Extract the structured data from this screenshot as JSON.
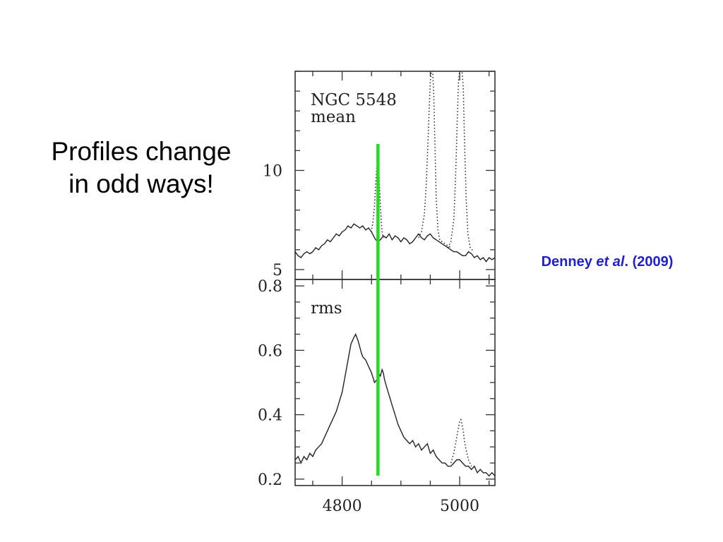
{
  "slide": {
    "caption_line1": "Profiles change",
    "caption_line2": "in odd ways!",
    "citation_author": "Denney",
    "citation_etal": "et al",
    "citation_year": ". (2009)",
    "citation_color": "#1f1fd0"
  },
  "chart_data": {
    "type": "line",
    "marker_color": "#22dd22",
    "marker_x": 4861,
    "xlabel": "",
    "xlim": [
      4720,
      5060
    ],
    "xticks": [
      4800,
      5000
    ],
    "panels": [
      {
        "name": "top",
        "label_lines": [
          "NGC 5548",
          "mean"
        ],
        "ylim": [
          4.5,
          15
        ],
        "yticks": [
          5,
          10
        ],
        "series": [
          {
            "style": "solid",
            "x": [
              4720,
              4725,
              4730,
              4735,
              4740,
              4745,
              4750,
              4755,
              4760,
              4765,
              4770,
              4775,
              4780,
              4785,
              4790,
              4795,
              4800,
              4805,
              4810,
              4815,
              4820,
              4825,
              4830,
              4835,
              4840,
              4845,
              4850,
              4855,
              4860,
              4865,
              4870,
              4875,
              4880,
              4885,
              4890,
              4895,
              4900,
              4905,
              4910,
              4915,
              4920,
              4925,
              4930,
              4935,
              4940,
              4945,
              4950,
              4955,
              4960,
              4965,
              4970,
              4975,
              4980,
              4985,
              4990,
              4995,
              5000,
              5005,
              5010,
              5015,
              5020,
              5025,
              5030,
              5035,
              5040,
              5045,
              5050,
              5055,
              5060
            ],
            "y": [
              5.9,
              5.7,
              5.6,
              5.8,
              5.9,
              5.8,
              5.9,
              6.1,
              6.0,
              6.2,
              6.3,
              6.5,
              6.4,
              6.6,
              6.8,
              6.7,
              6.9,
              7.0,
              7.2,
              7.1,
              7.3,
              7.2,
              7.1,
              7.2,
              7.0,
              7.1,
              6.9,
              6.6,
              6.4,
              6.5,
              6.7,
              6.6,
              6.8,
              6.5,
              6.7,
              6.6,
              6.4,
              6.6,
              6.5,
              6.3,
              6.4,
              6.6,
              6.8,
              6.6,
              6.5,
              6.7,
              6.8,
              6.6,
              6.5,
              6.4,
              6.3,
              6.2,
              6.1,
              6.0,
              5.9,
              5.9,
              5.8,
              5.7,
              5.7,
              5.9,
              5.8,
              5.6,
              5.7,
              5.5,
              5.6,
              5.4,
              5.6,
              5.5,
              5.6
            ]
          },
          {
            "style": "dotted",
            "x": [
              4849,
              4852,
              4855,
              4857,
              4859,
              4861,
              4863,
              4865,
              4867,
              4869,
              4871
            ],
            "y": [
              6.9,
              7.3,
              8.2,
              9.3,
              10.2,
              10.5,
              9.6,
              8.3,
              7.2,
              6.7,
              6.6
            ]
          },
          {
            "style": "dotted",
            "x": [
              4930,
              4935,
              4940,
              4943,
              4946,
              4948,
              4950,
              4952,
              4954,
              4956,
              4958,
              4960,
              4963,
              4966,
              4970,
              4975,
              4980,
              4985
            ],
            "y": [
              6.6,
              6.9,
              7.8,
              9.2,
              11.4,
              13.0,
              14.5,
              15.0,
              15.0,
              13.8,
              11.2,
              8.6,
              7.0,
              6.5,
              6.4,
              6.3,
              6.2,
              6.1
            ]
          },
          {
            "style": "dotted",
            "x": [
              4980,
              4985,
              4990,
              4993,
              4996,
              4998,
              5000,
              5002,
              5004,
              5006,
              5008,
              5011,
              5014,
              5018,
              5024
            ],
            "y": [
              6.1,
              6.4,
              7.5,
              9.6,
              12.6,
              14.5,
              15.0,
              15.0,
              15.0,
              14.2,
              11.8,
              8.6,
              6.8,
              6.1,
              5.9
            ]
          }
        ]
      },
      {
        "name": "bottom",
        "label_lines": [
          "rms"
        ],
        "ylim": [
          0.18,
          0.82
        ],
        "yticks": [
          0.2,
          0.4,
          0.6,
          0.8
        ],
        "yticklabels": [
          "0.2",
          "0.4",
          "0.6",
          "0.8"
        ],
        "series": [
          {
            "style": "solid",
            "x": [
              4720,
              4725,
              4730,
              4735,
              4740,
              4745,
              4750,
              4755,
              4760,
              4765,
              4770,
              4775,
              4780,
              4785,
              4790,
              4795,
              4800,
              4805,
              4810,
              4815,
              4820,
              4823,
              4825,
              4827,
              4830,
              4833,
              4835,
              4840,
              4845,
              4850,
              4855,
              4860,
              4862,
              4865,
              4868,
              4870,
              4872,
              4875,
              4880,
              4885,
              4890,
              4895,
              4900,
              4905,
              4910,
              4915,
              4920,
              4925,
              4930,
              4935,
              4940,
              4945,
              4950,
              4955,
              4960,
              4965,
              4970,
              4975,
              4980,
              4985,
              4990,
              4995,
              5000,
              5005,
              5010,
              5015,
              5020,
              5025,
              5030,
              5035,
              5040,
              5045,
              5050,
              5055,
              5060
            ],
            "y": [
              0.26,
              0.27,
              0.25,
              0.27,
              0.26,
              0.28,
              0.27,
              0.29,
              0.3,
              0.31,
              0.33,
              0.35,
              0.37,
              0.39,
              0.41,
              0.44,
              0.47,
              0.52,
              0.57,
              0.62,
              0.64,
              0.65,
              0.64,
              0.63,
              0.61,
              0.59,
              0.58,
              0.57,
              0.55,
              0.53,
              0.5,
              0.51,
              0.53,
              0.52,
              0.54,
              0.53,
              0.51,
              0.49,
              0.46,
              0.43,
              0.4,
              0.37,
              0.35,
              0.33,
              0.32,
              0.31,
              0.32,
              0.3,
              0.31,
              0.29,
              0.3,
              0.31,
              0.28,
              0.29,
              0.27,
              0.26,
              0.25,
              0.25,
              0.24,
              0.24,
              0.25,
              0.26,
              0.26,
              0.25,
              0.24,
              0.24,
              0.23,
              0.24,
              0.22,
              0.23,
              0.22,
              0.22,
              0.21,
              0.22,
              0.21
            ]
          },
          {
            "style": "dotted",
            "x": [
              4985,
              4990,
              4993,
              4996,
              4998,
              5000,
              5002,
              5004,
              5006,
              5008,
              5011,
              5015,
              5020
            ],
            "y": [
              0.25,
              0.28,
              0.31,
              0.34,
              0.36,
              0.38,
              0.385,
              0.37,
              0.35,
              0.32,
              0.29,
              0.26,
              0.24
            ]
          }
        ]
      }
    ]
  }
}
